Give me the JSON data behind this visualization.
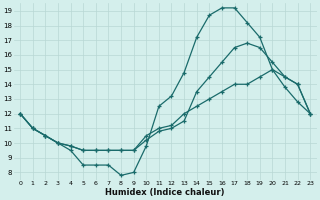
{
  "xlabel": "Humidex (Indice chaleur)",
  "bg_color": "#d4efec",
  "grid_color": "#b8d8d4",
  "line_color": "#1a6b6b",
  "xlim": [
    -0.5,
    23.5
  ],
  "ylim": [
    7.5,
    19.5
  ],
  "xticks": [
    0,
    1,
    2,
    3,
    4,
    5,
    6,
    7,
    8,
    9,
    10,
    11,
    12,
    13,
    14,
    15,
    16,
    17,
    18,
    19,
    20,
    21,
    22,
    23
  ],
  "yticks": [
    8,
    9,
    10,
    11,
    12,
    13,
    14,
    15,
    16,
    17,
    18,
    19
  ],
  "line1_x": [
    0,
    1,
    2,
    3,
    4,
    5,
    6,
    7,
    8,
    9,
    10,
    11,
    12,
    13,
    14,
    15,
    16,
    17,
    18,
    19,
    20,
    21,
    22,
    23
  ],
  "line1_y": [
    12,
    11,
    10.5,
    10,
    9.5,
    8.5,
    8.5,
    8.5,
    7.8,
    8.0,
    9.8,
    12.5,
    13.2,
    14.8,
    17.2,
    18.7,
    19.2,
    19.2,
    18.2,
    17.2,
    15.0,
    13.8,
    12.8,
    12.0
  ],
  "line2_x": [
    0,
    1,
    2,
    3,
    4,
    5,
    6,
    7,
    8,
    9,
    10,
    11,
    12,
    13,
    14,
    15,
    16,
    17,
    18,
    19,
    20,
    21,
    22,
    23
  ],
  "line2_y": [
    12,
    11,
    10.5,
    10,
    9.8,
    9.5,
    9.5,
    9.5,
    9.5,
    9.5,
    10.2,
    10.8,
    11.0,
    11.5,
    13.5,
    14.5,
    15.5,
    16.5,
    16.8,
    16.5,
    15.5,
    14.5,
    14.0,
    12.0
  ],
  "line3_x": [
    0,
    1,
    2,
    3,
    4,
    5,
    6,
    7,
    8,
    9,
    10,
    11,
    12,
    13,
    14,
    15,
    16,
    17,
    18,
    19,
    20,
    21,
    22,
    23
  ],
  "line3_y": [
    12,
    11,
    10.5,
    10,
    9.8,
    9.5,
    9.5,
    9.5,
    9.5,
    9.5,
    10.5,
    11.0,
    11.2,
    12.0,
    12.5,
    13.0,
    13.5,
    14.0,
    14.0,
    14.5,
    15.0,
    14.5,
    14.0,
    12.0
  ]
}
